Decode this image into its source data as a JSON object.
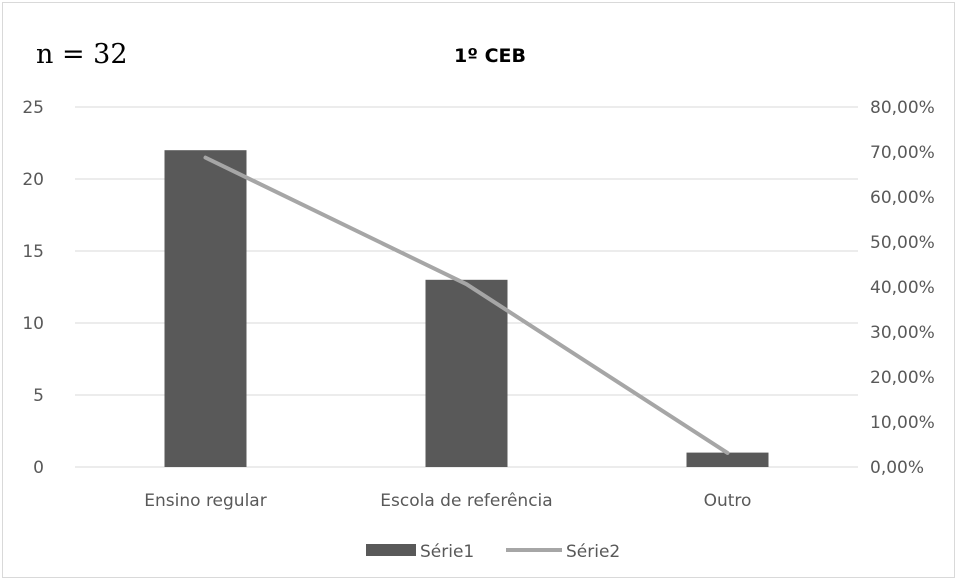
{
  "chart_data": {
    "type": "bar",
    "title": "1º CEB",
    "annotation": "n = 32",
    "categories": [
      "Ensino regular",
      "Escola de referência",
      "Outro"
    ],
    "series": [
      {
        "name": "Série1",
        "type": "bar",
        "axis": "left",
        "values": [
          22,
          13,
          1
        ],
        "color": "#595959"
      },
      {
        "name": "Série2",
        "type": "line",
        "axis": "right",
        "values": [
          0.6875,
          0.40625,
          0.03125
        ],
        "color": "#a6a6a6"
      }
    ],
    "y_left": {
      "ylim": [
        0,
        25
      ],
      "ticks": [
        "0",
        "5",
        "10",
        "15",
        "20",
        "25"
      ],
      "tick_values": [
        0,
        5,
        10,
        15,
        20,
        25
      ]
    },
    "y_right": {
      "ylim": [
        0,
        0.8
      ],
      "ticks": [
        "0,00%",
        "10,00%",
        "20,00%",
        "30,00%",
        "40,00%",
        "50,00%",
        "60,00%",
        "70,00%",
        "80,00%"
      ],
      "tick_values": [
        0,
        0.1,
        0.2,
        0.3,
        0.4,
        0.5,
        0.6,
        0.7,
        0.8
      ]
    },
    "grid": true,
    "legend_position": "bottom"
  }
}
